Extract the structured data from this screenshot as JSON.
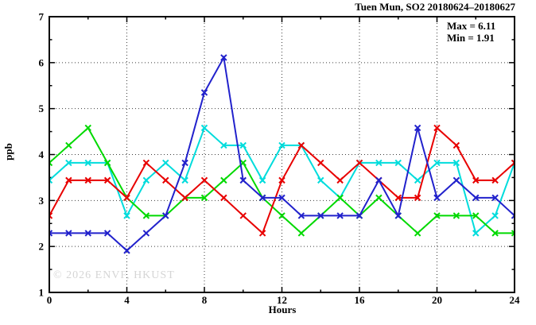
{
  "header": {
    "title": "Tuen Mun, SO2 20180624–20180627"
  },
  "annotations": {
    "max_label": "Max = 6.11",
    "min_label": "Min = 1.91"
  },
  "watermark": "© 2026 ENVF, HKUST",
  "chart_data": {
    "type": "line",
    "title": "Tuen Mun, SO2 20180624–20180627",
    "xlabel": "Hours",
    "ylabel": "ppb",
    "xlim": [
      0,
      24
    ],
    "ylim": [
      1,
      7
    ],
    "x_major_ticks": [
      0,
      4,
      8,
      12,
      16,
      20,
      24
    ],
    "x_minor_step": 2,
    "y_major_ticks": [
      1,
      2,
      3,
      4,
      5,
      6,
      7
    ],
    "y_minor_step": 0.5,
    "grid": true,
    "legend": "none",
    "max_value": 6.11,
    "min_value": 1.91,
    "x": [
      0,
      1,
      2,
      3,
      4,
      5,
      6,
      7,
      8,
      9,
      10,
      11,
      12,
      13,
      14,
      15,
      16,
      17,
      18,
      19,
      20,
      21,
      22,
      23,
      24
    ],
    "series": [
      {
        "name": "cyan-line",
        "color": "#00dcdc",
        "values": [
          3.44,
          3.82,
          3.82,
          3.82,
          2.67,
          3.44,
          3.82,
          3.44,
          4.58,
          4.2,
          4.2,
          3.44,
          4.2,
          4.2,
          3.44,
          3.06,
          3.82,
          3.82,
          3.82,
          3.44,
          3.82,
          3.82,
          2.29,
          2.67,
          3.82
        ]
      },
      {
        "name": "green-line",
        "color": "#00d900",
        "values": [
          3.82,
          4.2,
          4.58,
          3.82,
          3.06,
          2.67,
          2.67,
          3.06,
          3.06,
          3.44,
          3.82,
          3.06,
          2.67,
          2.29,
          2.67,
          3.06,
          2.67,
          3.06,
          2.67,
          2.29,
          2.67,
          2.67,
          2.67,
          2.29,
          2.29
        ]
      },
      {
        "name": "red-line",
        "color": "#e80000",
        "values": [
          2.67,
          3.44,
          3.44,
          3.44,
          3.06,
          3.82,
          3.44,
          3.06,
          3.44,
          3.06,
          2.67,
          2.29,
          3.44,
          4.2,
          3.82,
          3.44,
          3.82,
          3.44,
          3.06,
          3.06,
          4.58,
          4.2,
          3.44,
          3.44,
          3.82
        ]
      },
      {
        "name": "blue-line",
        "color": "#2222cc",
        "values": [
          2.29,
          2.29,
          2.29,
          2.29,
          1.91,
          2.29,
          2.67,
          3.82,
          5.35,
          6.11,
          3.44,
          3.06,
          3.06,
          2.67,
          2.67,
          2.67,
          2.67,
          3.44,
          2.67,
          4.58,
          3.06,
          3.44,
          3.06,
          3.06,
          2.67
        ]
      }
    ]
  }
}
